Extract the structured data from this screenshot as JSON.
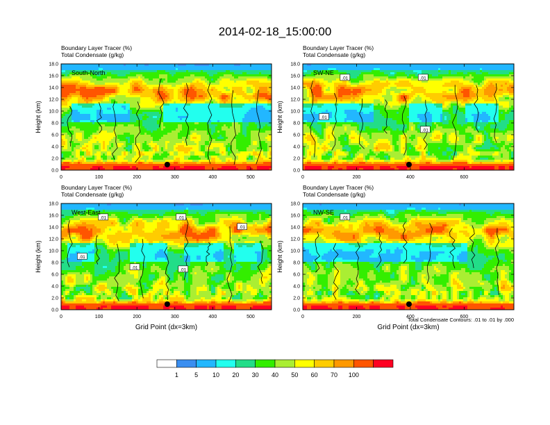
{
  "figure": {
    "title": "2014-02-18_15:00:00",
    "footnote": "Total Condensate Contours: .01 to .01 by .000"
  },
  "colors": {
    "levels": [
      "#ffffff",
      "#3a8ef0",
      "#22b7ff",
      "#22ffee",
      "#22dd88",
      "#33ee00",
      "#aaee33",
      "#ffff00",
      "#ffcc00",
      "#ff9900",
      "#ff5500",
      "#ff0022"
    ]
  },
  "chart_data": [
    {
      "type": "heatmap",
      "panel": "top-left",
      "label": "South-North",
      "title_line1": "Boundary Layer Tracer   (%)",
      "title_line2": "Total Condensate   (g/kg)",
      "ylabel": "Height (km)",
      "xlabel": "",
      "xlim": [
        0,
        555
      ],
      "ylim": [
        0,
        18
      ],
      "xticks": [
        0,
        100,
        200,
        300,
        400,
        500
      ],
      "yticks": [
        "0.0",
        "2.0",
        "4.0",
        "6.0",
        "8.0",
        "10.0",
        "12.0",
        "14.0",
        "16.0",
        "18.0"
      ],
      "marker_x": 280,
      "contour_labels": []
    },
    {
      "type": "heatmap",
      "panel": "top-right",
      "label": "SW-NE",
      "title_line1": "Boundary Layer Tracer   (%)",
      "title_line2": "Total Condensate   (g/kg)",
      "ylabel": "Height (km)",
      "xlabel": "",
      "xlim": [
        0,
        785
      ],
      "ylim": [
        0,
        18
      ],
      "xticks": [
        0,
        200,
        400,
        600
      ],
      "yticks": [
        "0.0",
        "2.0",
        "4.0",
        "6.0",
        "8.0",
        "10.0",
        "12.0",
        "14.0",
        "16.0",
        "18.0"
      ],
      "marker_x": 395,
      "contour_labels": [
        ".01",
        ".01",
        ".01",
        ".01"
      ]
    },
    {
      "type": "heatmap",
      "panel": "bottom-left",
      "label": "West-East",
      "title_line1": "Boundary Layer Tracer   (%)",
      "title_line2": "Total Condensate   (g/kg)",
      "ylabel": "Height (km)",
      "xlabel": "Grid Point (dx=3km)",
      "xlim": [
        0,
        555
      ],
      "ylim": [
        0,
        18
      ],
      "xticks": [
        0,
        100,
        200,
        300,
        400,
        500
      ],
      "yticks": [
        "0.0",
        "2.0",
        "4.0",
        "6.0",
        "8.0",
        "10.0",
        "12.0",
        "14.0",
        "16.0",
        "18.0"
      ],
      "marker_x": 280,
      "contour_labels": [
        ".01",
        ".01",
        ".01",
        ".01",
        ".01",
        ".01"
      ]
    },
    {
      "type": "heatmap",
      "panel": "bottom-right",
      "label": "NW-SE",
      "title_line1": "Boundary Layer Tracer   (%)",
      "title_line2": "Total Condensate   (g/kg)",
      "ylabel": "Height (km)",
      "xlabel": "Grid Point (dx=3km)",
      "xlim": [
        0,
        785
      ],
      "ylim": [
        0,
        18
      ],
      "xticks": [
        0,
        200,
        400,
        600
      ],
      "yticks": [
        "0.0",
        "2.0",
        "4.0",
        "6.0",
        "8.0",
        "10.0",
        "12.0",
        "14.0",
        "16.0",
        "18.0"
      ],
      "marker_x": 395,
      "contour_labels": [
        ".01"
      ]
    }
  ],
  "colorbar": {
    "labels": [
      "1",
      "5",
      "10",
      "20",
      "30",
      "40",
      "50",
      "60",
      "70",
      "100"
    ]
  }
}
